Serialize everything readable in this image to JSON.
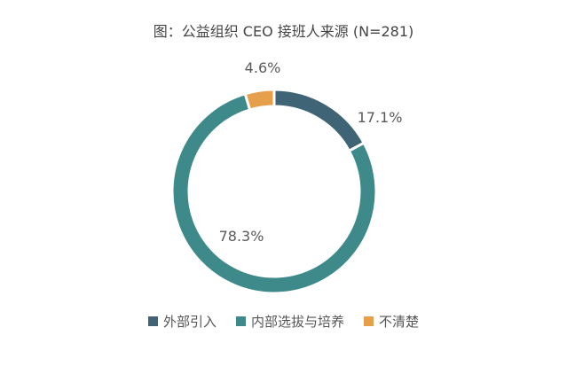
{
  "chart_data": {
    "type": "pie",
    "title": "图：公益组织 CEO 接班人来源 (N=281)",
    "donut": true,
    "legend_placement": "bottom",
    "categories": [
      "外部引入",
      "内部选拔与培养",
      "不清楚"
    ],
    "values": [
      17.1,
      78.3,
      4.6
    ],
    "value_labels": [
      "17.1%",
      "78.3%",
      "4.6%"
    ],
    "colors": [
      "#3f6475",
      "#3e8a8a",
      "#e6a04c"
    ]
  }
}
